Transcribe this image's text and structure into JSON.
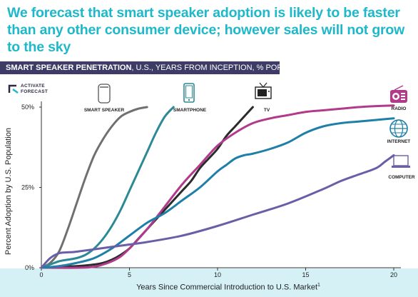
{
  "headline": "We forecast that smart speaker adoption is likely to be faster than any other consumer device; however sales will not grow to the sky",
  "banner": {
    "title_bold": "SMART SPEAKER PENETRATION",
    "title_rest": ", U.S., YEARS FROM INCEPTION, % POPULATION"
  },
  "brand": {
    "line1": "ACTIVATE",
    "line2": "FORECAST"
  },
  "chart_data": {
    "type": "line",
    "xlabel": "Years Since Commercial Introduction to U.S. Market",
    "xlabel_sup": "1",
    "ylabel": "Percent Adoption by U.S. Population",
    "xlim": [
      0,
      20
    ],
    "ylim": [
      0,
      50
    ],
    "x_ticks": [
      "0",
      "5",
      "10",
      "15",
      "20"
    ],
    "y_ticks": [
      "0%",
      "25%",
      "50%"
    ],
    "series": [
      {
        "name": "SMART SPEAKER",
        "color": "#707070",
        "x": [
          0,
          0.5,
          1,
          1.5,
          2,
          2.5,
          3,
          3.5,
          4,
          4.5,
          5,
          5.5,
          6
        ],
        "y": [
          0,
          1.5,
          5,
          12,
          20,
          28,
          35,
          40,
          44,
          47,
          48.5,
          49.5,
          50
        ]
      },
      {
        "name": "SMARTPHONE",
        "color": "#2b8a94",
        "x": [
          0,
          0.5,
          1,
          1.5,
          2,
          2.5,
          3,
          3.5,
          4,
          4.5,
          5,
          5.5,
          6,
          6.5,
          7,
          7.5
        ],
        "y": [
          0,
          1,
          2,
          2.5,
          3,
          4,
          6,
          9,
          13,
          18,
          24,
          30,
          36,
          42,
          47,
          50
        ]
      },
      {
        "name": "TV",
        "color": "#2b2b2b",
        "x": [
          0,
          1,
          2,
          3,
          3.5,
          4,
          4.5,
          5,
          5.5,
          6,
          6.5,
          7,
          7.5,
          8,
          8.5,
          9,
          9.5,
          10,
          10.5,
          11,
          11.5,
          12
        ],
        "y": [
          0,
          0.3,
          0.5,
          1,
          1.5,
          2.5,
          4,
          6,
          9,
          12,
          15,
          18,
          21,
          24,
          27,
          31,
          34,
          37,
          41,
          44,
          47,
          50
        ]
      },
      {
        "name": "RADIO",
        "color": "#b23a8a",
        "x": [
          0,
          2,
          3,
          3.5,
          4,
          4.5,
          5,
          6,
          7,
          8,
          9,
          10,
          11,
          12,
          13,
          14,
          15,
          16,
          17,
          18,
          19,
          20
        ],
        "y": [
          0,
          0,
          0.3,
          1,
          2,
          3.5,
          6,
          12,
          19,
          26,
          32,
          38,
          42,
          45,
          46.5,
          47.5,
          48.5,
          49,
          49.5,
          50,
          50.3,
          50.5
        ]
      },
      {
        "name": "INTERNET",
        "color": "#1e7fa8",
        "x": [
          0,
          1,
          2,
          3,
          4,
          5,
          6,
          7,
          8,
          9,
          10,
          10.5,
          11,
          11.5,
          12,
          13,
          14,
          15,
          16,
          17,
          18,
          19,
          20
        ],
        "y": [
          0,
          0.5,
          1.5,
          3,
          6,
          10,
          14,
          17,
          21,
          25,
          30,
          32,
          34,
          35,
          35.5,
          37,
          39,
          42,
          44,
          45,
          45.5,
          46,
          46.5
        ]
      },
      {
        "name": "COMPUTER",
        "color": "#6a5ea8",
        "x": [
          0,
          0.5,
          1,
          1.5,
          2,
          4,
          6,
          8,
          10,
          12,
          14,
          16,
          17,
          18,
          19,
          19.5,
          20
        ],
        "y": [
          0,
          3,
          4.5,
          4.8,
          5,
          6.5,
          8,
          10,
          13,
          16.5,
          20,
          24.5,
          27,
          29,
          31,
          33,
          35
        ]
      }
    ]
  }
}
